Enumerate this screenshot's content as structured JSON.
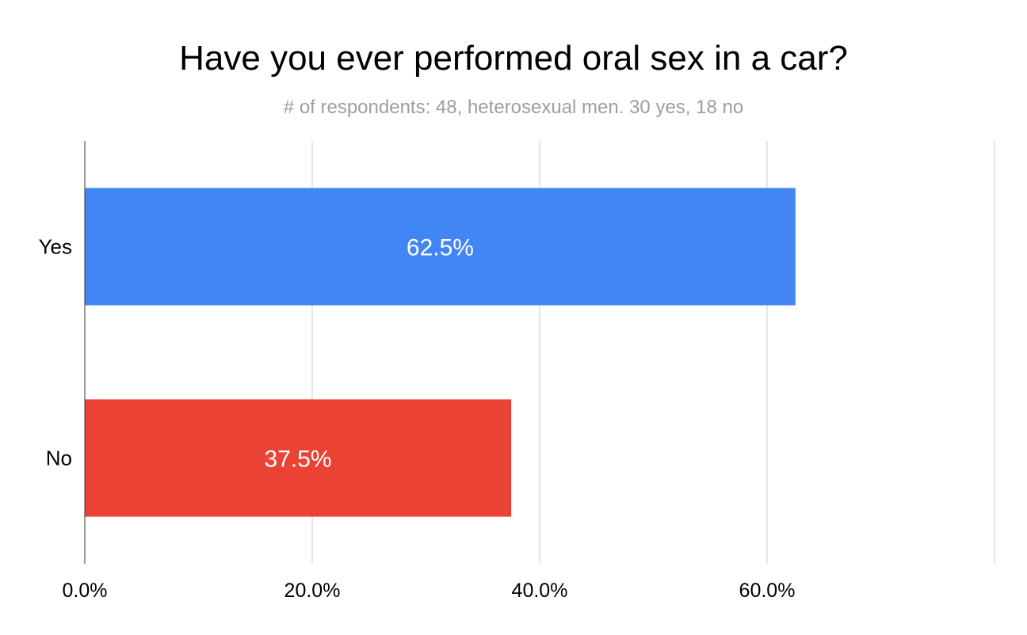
{
  "chart_data": {
    "type": "bar",
    "orientation": "horizontal",
    "title": "Have you ever performed oral sex in a car?",
    "subtitle": "# of respondents: 48, heterosexual men. 30 yes, 18 no",
    "categories": [
      "Yes",
      "No"
    ],
    "values": [
      62.5,
      37.5
    ],
    "data_labels": [
      "62.5%",
      "37.5%"
    ],
    "bar_colors": [
      "#4285f4",
      "#ea4335"
    ],
    "xlim": [
      0,
      80
    ],
    "x_ticks": [
      0,
      20,
      40,
      60,
      80
    ],
    "x_tick_labels": [
      "0.0%",
      "20.0%",
      "40.0%",
      "60.0%",
      ""
    ],
    "grid": true,
    "legend": "none"
  }
}
